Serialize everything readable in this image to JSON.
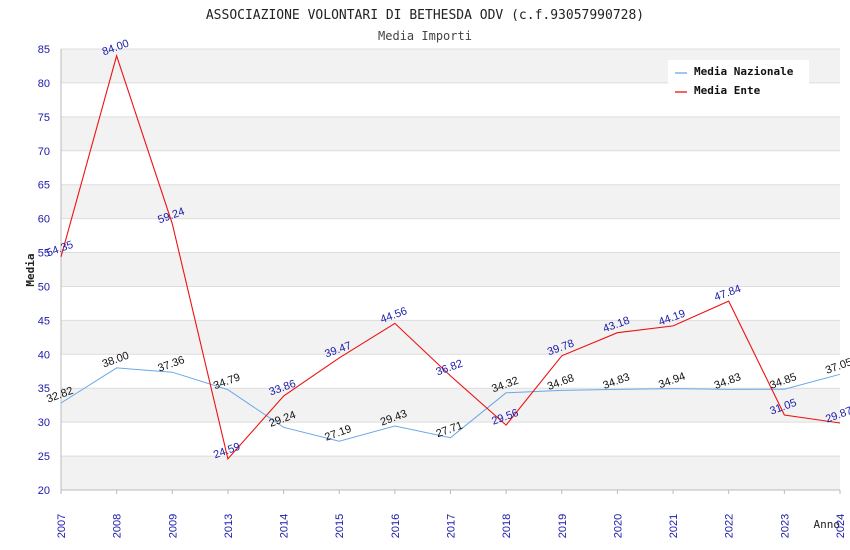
{
  "chart_data": {
    "type": "line",
    "title": "ASSOCIAZIONE VOLONTARI DI BETHESDA ODV (c.f.93057990728)",
    "subtitle": "Media Importi",
    "xlabel": "Anno",
    "ylabel": "Media",
    "ylim": [
      20,
      85
    ],
    "yticks": [
      "20",
      "25",
      "30",
      "35",
      "40",
      "45",
      "50",
      "55",
      "60",
      "65",
      "70",
      "75",
      "80",
      "85"
    ],
    "categories": [
      "2007",
      "2008",
      "2009",
      "2013",
      "2014",
      "2015",
      "2016",
      "2017",
      "2018",
      "2019",
      "2020",
      "2021",
      "2022",
      "2023",
      "2024"
    ],
    "legend_position": "top-right",
    "series": [
      {
        "name": "Media Nazionale",
        "color": "#6aa8e8",
        "values": [
          32.82,
          38.0,
          37.36,
          34.79,
          29.24,
          27.19,
          29.43,
          27.71,
          34.32,
          34.68,
          34.83,
          34.94,
          34.83,
          34.85,
          37.05
        ],
        "labels": [
          "32.82",
          "38.00",
          "37.36",
          "34.79",
          "29.24",
          "27.19",
          "29.43",
          "27.71",
          "34.32",
          "34.68",
          "34.83",
          "34.94",
          "34.83",
          "34.85",
          "37.05"
        ]
      },
      {
        "name": "Media Ente",
        "color": "#ee1111",
        "values": [
          54.35,
          84.0,
          59.24,
          24.59,
          33.86,
          39.47,
          44.56,
          36.82,
          29.56,
          39.78,
          43.18,
          44.19,
          47.84,
          31.05,
          29.87
        ],
        "labels": [
          "54.35",
          "84.00",
          "59.24",
          "24.59",
          "33.86",
          "39.47",
          "44.56",
          "36.82",
          "29.56",
          "39.78",
          "43.18",
          "44.19",
          "47.84",
          "31.05",
          "29.87"
        ]
      }
    ]
  }
}
